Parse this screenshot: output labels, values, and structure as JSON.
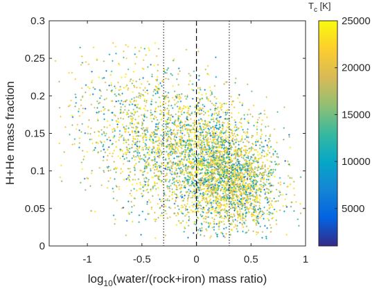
{
  "chart_data": {
    "type": "scatter",
    "xlabel_main": "log",
    "xlabel_sub": "10",
    "xlabel_rest": "(water/(rock+iron) mass ratio)",
    "ylabel": "H+He mass fraction",
    "xlim": [
      -1.35,
      1.0
    ],
    "ylim": [
      0,
      0.3
    ],
    "x_ticks": [
      -1,
      -0.5,
      0,
      0.5,
      1
    ],
    "x_tick_labels": [
      "-1",
      "-0.5",
      "0",
      "0.5",
      "1"
    ],
    "y_ticks": [
      0,
      0.05,
      0.1,
      0.15,
      0.2,
      0.25,
      0.3
    ],
    "y_tick_labels": [
      "0",
      "0.05",
      "0.1",
      "0.15",
      "0.2",
      "0.25",
      "0.3"
    ],
    "grid": false,
    "colorbar": {
      "title_main": "T",
      "title_sub": "c",
      "title_rest": " [K]",
      "range": [
        1000,
        25000
      ],
      "ticks": [
        5000,
        10000,
        15000,
        20000,
        25000
      ],
      "tick_labels": [
        "5000",
        "10000",
        "15000",
        "20000",
        "25000"
      ],
      "colormap": "parula",
      "colormap_stops": [
        "#352a87",
        "#0363e1",
        "#1485d4",
        "#06a7c6",
        "#38b99e",
        "#92bf73",
        "#d9ba56",
        "#fcce2e",
        "#f9fb0e"
      ]
    },
    "reference_lines": [
      {
        "x": -0.301,
        "style": "dotted"
      },
      {
        "x": 0,
        "style": "dashed"
      },
      {
        "x": 0.301,
        "style": "dotted"
      }
    ],
    "point_count_estimate": 4500,
    "density_clusters": [
      {
        "x": 0.3,
        "y": 0.09,
        "x_sd": 0.22,
        "y_sd": 0.035,
        "share": 0.45
      },
      {
        "x": 0.0,
        "y": 0.12,
        "x_sd": 0.32,
        "y_sd": 0.045,
        "share": 0.35
      },
      {
        "x": -0.5,
        "y": 0.15,
        "x_sd": 0.35,
        "y_sd": 0.05,
        "share": 0.2
      }
    ]
  }
}
